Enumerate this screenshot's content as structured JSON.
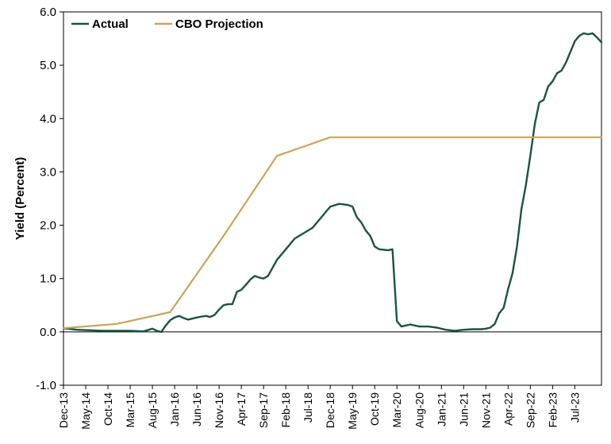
{
  "chart_data": {
    "type": "line",
    "title": "",
    "xlabel": "",
    "ylabel": "Yield (Percent)",
    "ylim": [
      -1.0,
      6.0
    ],
    "yticks": [
      "6.0",
      "5.0",
      "4.0",
      "3.0",
      "2.0",
      "1.0",
      "0.0",
      "-1.0"
    ],
    "xlim": [
      "2013-12",
      "2024-01"
    ],
    "xticks": [
      "Dec-13",
      "May-14",
      "Oct-14",
      "Mar-15",
      "Aug-15",
      "Jan-16",
      "Jun-16",
      "Nov-16",
      "Apr-17",
      "Sep-17",
      "Feb-18",
      "Jul-18",
      "Dec-18",
      "May-19",
      "Oct-19",
      "Mar-20",
      "Aug-20",
      "Jan-21",
      "Jun-21",
      "Nov-21",
      "Apr-22",
      "Sep-22",
      "Feb-23",
      "Jul-23"
    ],
    "grid": false,
    "legend": "top-left",
    "series": [
      {
        "name": "Actual",
        "color": "#1a5440",
        "points": [
          [
            "2013-12",
            0.07
          ],
          [
            "2014-03",
            0.04
          ],
          [
            "2014-06",
            0.03
          ],
          [
            "2014-09",
            0.02
          ],
          [
            "2014-12",
            0.02
          ],
          [
            "2015-03",
            0.02
          ],
          [
            "2015-06",
            0.01
          ],
          [
            "2015-08",
            0.06
          ],
          [
            "2015-09",
            0.02
          ],
          [
            "2015-10",
            0.0
          ],
          [
            "2015-11",
            0.12
          ],
          [
            "2015-12",
            0.22
          ],
          [
            "2016-01",
            0.27
          ],
          [
            "2016-02",
            0.3
          ],
          [
            "2016-03",
            0.26
          ],
          [
            "2016-04",
            0.23
          ],
          [
            "2016-06",
            0.27
          ],
          [
            "2016-08",
            0.3
          ],
          [
            "2016-09",
            0.28
          ],
          [
            "2016-10",
            0.32
          ],
          [
            "2016-11",
            0.42
          ],
          [
            "2016-12",
            0.5
          ],
          [
            "2017-01",
            0.52
          ],
          [
            "2017-02",
            0.52
          ],
          [
            "2017-03",
            0.75
          ],
          [
            "2017-04",
            0.79
          ],
          [
            "2017-05",
            0.88
          ],
          [
            "2017-06",
            0.98
          ],
          [
            "2017-07",
            1.05
          ],
          [
            "2017-08",
            1.02
          ],
          [
            "2017-09",
            1.0
          ],
          [
            "2017-10",
            1.05
          ],
          [
            "2017-11",
            1.2
          ],
          [
            "2017-12",
            1.35
          ],
          [
            "2018-02",
            1.55
          ],
          [
            "2018-04",
            1.75
          ],
          [
            "2018-06",
            1.85
          ],
          [
            "2018-08",
            1.95
          ],
          [
            "2018-10",
            2.15
          ],
          [
            "2018-12",
            2.35
          ],
          [
            "2019-02",
            2.4
          ],
          [
            "2019-04",
            2.38
          ],
          [
            "2019-05",
            2.35
          ],
          [
            "2019-06",
            2.15
          ],
          [
            "2019-07",
            2.05
          ],
          [
            "2019-08",
            1.9
          ],
          [
            "2019-09",
            1.8
          ],
          [
            "2019-10",
            1.6
          ],
          [
            "2019-11",
            1.55
          ],
          [
            "2020-01",
            1.53
          ],
          [
            "2020-02",
            1.55
          ],
          [
            "2020-03",
            0.2
          ],
          [
            "2020-04",
            0.1
          ],
          [
            "2020-05",
            0.12
          ],
          [
            "2020-06",
            0.14
          ],
          [
            "2020-08",
            0.1
          ],
          [
            "2020-10",
            0.1
          ],
          [
            "2020-12",
            0.08
          ],
          [
            "2021-02",
            0.04
          ],
          [
            "2021-04",
            0.02
          ],
          [
            "2021-06",
            0.04
          ],
          [
            "2021-08",
            0.05
          ],
          [
            "2021-10",
            0.05
          ],
          [
            "2021-11",
            0.06
          ],
          [
            "2021-12",
            0.08
          ],
          [
            "2022-01",
            0.15
          ],
          [
            "2022-02",
            0.35
          ],
          [
            "2022-03",
            0.45
          ],
          [
            "2022-04",
            0.8
          ],
          [
            "2022-05",
            1.1
          ],
          [
            "2022-06",
            1.6
          ],
          [
            "2022-07",
            2.3
          ],
          [
            "2022-08",
            2.75
          ],
          [
            "2022-09",
            3.3
          ],
          [
            "2022-10",
            3.9
          ],
          [
            "2022-11",
            4.3
          ],
          [
            "2022-12",
            4.35
          ],
          [
            "2023-01",
            4.6
          ],
          [
            "2023-02",
            4.7
          ],
          [
            "2023-03",
            4.85
          ],
          [
            "2023-04",
            4.9
          ],
          [
            "2023-05",
            5.05
          ],
          [
            "2023-06",
            5.25
          ],
          [
            "2023-07",
            5.45
          ],
          [
            "2023-08",
            5.55
          ],
          [
            "2023-09",
            5.6
          ],
          [
            "2023-10",
            5.58
          ],
          [
            "2023-11",
            5.6
          ],
          [
            "2023-12",
            5.52
          ],
          [
            "2024-01",
            5.43
          ]
        ]
      },
      {
        "name": "CBO Projection",
        "color": "#c9a45a",
        "points": [
          [
            "2013-12",
            0.07
          ],
          [
            "2014-12",
            0.15
          ],
          [
            "2015-12",
            0.37
          ],
          [
            "2016-12",
            1.8
          ],
          [
            "2017-12",
            3.3
          ],
          [
            "2018-12",
            3.65
          ],
          [
            "2024-01",
            3.65
          ]
        ]
      }
    ]
  }
}
